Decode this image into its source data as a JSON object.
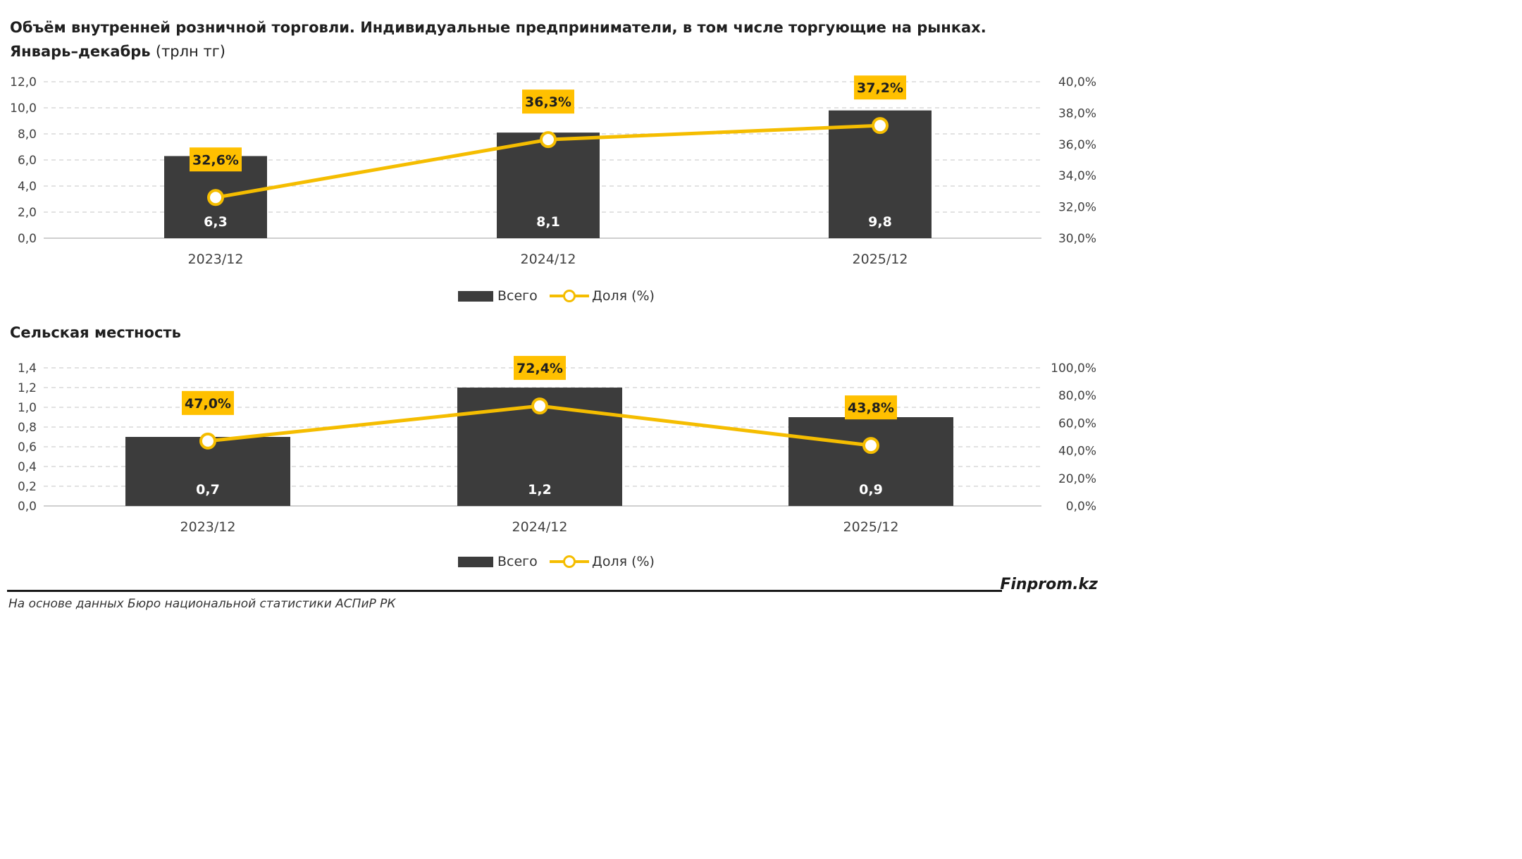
{
  "title": {
    "line1": "Объём внутренней розничной торговли. Индивидуальные предприниматели, в том числе торгующие на рынках.",
    "line2": "Январь–декабрь",
    "unit": "(трлн тг)"
  },
  "subtitle": "Сельская местность",
  "colors": {
    "bar": "#3c3c3c",
    "line": "#f5bd00",
    "label_box": "#ffc000",
    "grid": "#d9d9d9",
    "axis": "#bfbfbf"
  },
  "legend": {
    "bar_label": "Всего",
    "line_label": "Доля (%)"
  },
  "footer": {
    "brand": "Finprom.kz",
    "source": "На основе данных Бюро национальной статистики АСПиР РК"
  },
  "chart_data": [
    {
      "type": "bar",
      "categories": [
        "2023/12",
        "2024/12",
        "2025/12"
      ],
      "series": [
        {
          "name": "Всего",
          "type": "bar",
          "axis": "left",
          "values": [
            6.3,
            8.1,
            9.8
          ],
          "labels": [
            "6,3",
            "8,1",
            "9,8"
          ]
        },
        {
          "name": "Доля (%)",
          "type": "line",
          "axis": "right",
          "values": [
            32.6,
            36.3,
            37.2
          ],
          "labels": [
            "32,6%",
            "36,3%",
            "37,2%"
          ]
        }
      ],
      "ylim": [
        0,
        12
      ],
      "y_ticks": [
        "0,0",
        "2,0",
        "4,0",
        "6,0",
        "8,0",
        "10,0",
        "12,0"
      ],
      "y2lim": [
        30,
        40
      ],
      "y2_ticks": [
        "30,0%",
        "32,0%",
        "34,0%",
        "36,0%",
        "38,0%",
        "40,0%"
      ],
      "grid": true,
      "legend_position": "bottom"
    },
    {
      "type": "bar",
      "categories": [
        "2023/12",
        "2024/12",
        "2025/12"
      ],
      "series": [
        {
          "name": "Всего",
          "type": "bar",
          "axis": "left",
          "values": [
            0.7,
            1.2,
            0.9
          ],
          "labels": [
            "0,7",
            "1,2",
            "0,9"
          ]
        },
        {
          "name": "Доля (%)",
          "type": "line",
          "axis": "right",
          "values": [
            47.0,
            72.4,
            43.8
          ],
          "labels": [
            "47,0%",
            "72,4%",
            "43,8%"
          ]
        }
      ],
      "ylim": [
        0,
        1.4
      ],
      "y_ticks": [
        "0,0",
        "0,2",
        "0,4",
        "0,6",
        "0,8",
        "1,0",
        "1,2",
        "1,4"
      ],
      "y2lim": [
        0,
        100
      ],
      "y2_ticks": [
        "0,0%",
        "20,0%",
        "40,0%",
        "60,0%",
        "80,0%",
        "100,0%"
      ],
      "grid": true,
      "legend_position": "bottom"
    }
  ]
}
